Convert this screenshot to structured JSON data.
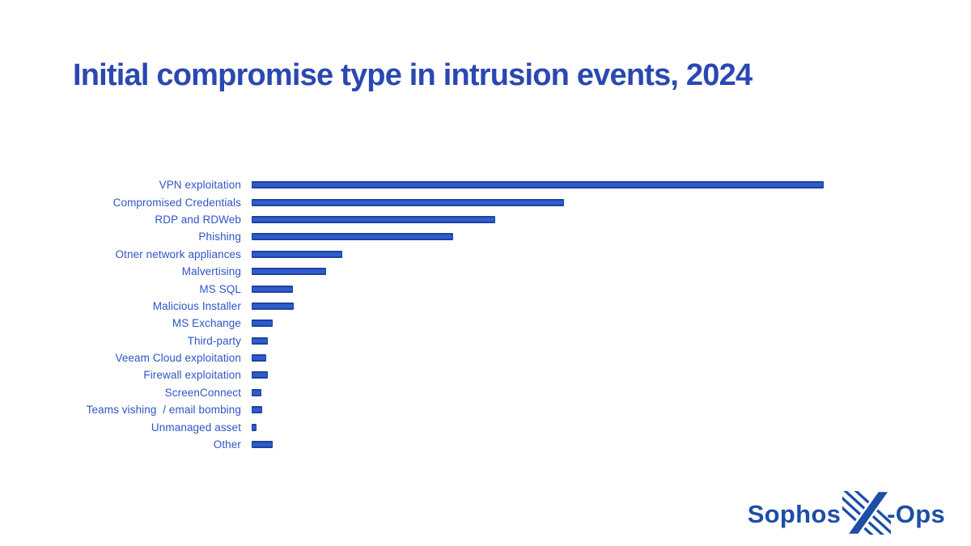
{
  "title": "Initial compromise type in intrusion events, 2024",
  "logo": {
    "left": "Sophos",
    "right": "-Ops"
  },
  "colors": {
    "background": "#ffffff",
    "title_text": "#2a48b2",
    "label_text": "#2e55c5",
    "bar_fill": "#2e5ccb",
    "bar_edge": "#1e429f",
    "logo_blue": "#1d4ea6"
  },
  "chart_data": {
    "type": "bar",
    "orientation": "horizontal",
    "title": "Initial compromise type in intrusion events, 2024",
    "categories": [
      "VPN exploitation",
      "Compromised Credentials",
      "RDP and RDWeb",
      "Phishing",
      "Otner network appliances",
      "Malvertising",
      "MS SQL",
      "Malicious Installer",
      "MS Exchange",
      "Third-party",
      "Veeam Cloud exploitation",
      "Firewall exploitation",
      "ScreenConnect",
      "Teams vishing  / email bombing",
      "Unmanaged asset",
      "Other"
    ],
    "values": [
      100,
      54.6,
      42.6,
      35.2,
      15.8,
      13.0,
      7.2,
      7.4,
      3.7,
      2.8,
      2.6,
      2.8,
      1.7,
      1.8,
      0.8,
      3.7
    ],
    "value_note": "No numeric axis shown; values are relative bar lengths with longest bar = 100",
    "xlabel": "",
    "ylabel": "",
    "grid": false,
    "legend": false,
    "bar_order": "descending with Other last"
  }
}
